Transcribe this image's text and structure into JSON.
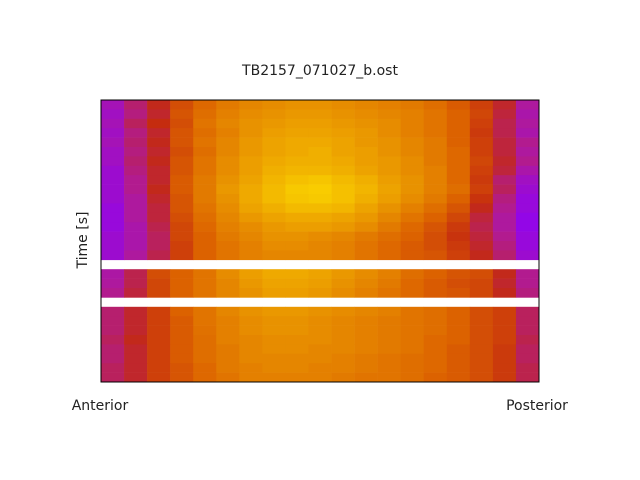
{
  "chart_data": {
    "type": "heatmap",
    "title": "TB2157_071027_b.ost",
    "ylabel": "Time [s]",
    "xlabel_left": "Anterior",
    "xlabel_right": "Posterior",
    "zlim": [
      0,
      100
    ],
    "colormap": [
      "#8a00ff",
      "#b01a9a",
      "#c42a10",
      "#dc6200",
      "#e99400",
      "#f6c400",
      "#ffe200"
    ],
    "z": [
      [
        12,
        22,
        32,
        44,
        52,
        58,
        62,
        64,
        66,
        66,
        64,
        62,
        60,
        58,
        54,
        48,
        40,
        30,
        16
      ],
      [
        10,
        20,
        30,
        46,
        54,
        60,
        64,
        66,
        68,
        68,
        66,
        64,
        62,
        60,
        56,
        50,
        42,
        28,
        14
      ],
      [
        12,
        24,
        34,
        44,
        56,
        62,
        66,
        68,
        70,
        70,
        68,
        66,
        64,
        60,
        56,
        50,
        40,
        26,
        16
      ],
      [
        10,
        20,
        30,
        46,
        54,
        60,
        66,
        70,
        72,
        72,
        70,
        68,
        64,
        60,
        56,
        50,
        38,
        26,
        14
      ],
      [
        12,
        22,
        32,
        46,
        56,
        62,
        68,
        72,
        74,
        74,
        72,
        68,
        66,
        62,
        58,
        50,
        40,
        28,
        18
      ],
      [
        10,
        20,
        30,
        44,
        54,
        62,
        68,
        72,
        74,
        76,
        72,
        70,
        66,
        62,
        58,
        52,
        40,
        28,
        16
      ],
      [
        10,
        22,
        32,
        46,
        56,
        64,
        70,
        74,
        76,
        76,
        74,
        70,
        68,
        64,
        58,
        52,
        42,
        30,
        18
      ],
      [
        8,
        20,
        30,
        46,
        56,
        64,
        70,
        76,
        78,
        78,
        76,
        72,
        68,
        64,
        60,
        52,
        40,
        28,
        14
      ],
      [
        8,
        18,
        30,
        48,
        58,
        66,
        72,
        78,
        82,
        84,
        80,
        76,
        70,
        66,
        60,
        52,
        38,
        22,
        10
      ],
      [
        8,
        18,
        32,
        48,
        58,
        68,
        74,
        80,
        86,
        88,
        82,
        78,
        72,
        66,
        60,
        54,
        40,
        24,
        8
      ],
      [
        8,
        16,
        30,
        46,
        58,
        66,
        74,
        80,
        84,
        86,
        82,
        76,
        70,
        64,
        58,
        50,
        36,
        20,
        6
      ],
      [
        6,
        16,
        28,
        46,
        56,
        64,
        72,
        76,
        80,
        80,
        78,
        72,
        66,
        60,
        54,
        46,
        32,
        18,
        6
      ],
      [
        6,
        16,
        28,
        44,
        54,
        62,
        68,
        72,
        74,
        74,
        72,
        68,
        62,
        56,
        50,
        42,
        28,
        16,
        4
      ],
      [
        6,
        14,
        26,
        42,
        52,
        60,
        64,
        68,
        70,
        70,
        68,
        64,
        58,
        52,
        46,
        38,
        26,
        16,
        4
      ],
      [
        8,
        14,
        24,
        42,
        50,
        58,
        62,
        66,
        66,
        64,
        62,
        58,
        54,
        50,
        44,
        36,
        28,
        18,
        6
      ],
      [
        8,
        14,
        24,
        40,
        50,
        56,
        60,
        64,
        64,
        62,
        60,
        56,
        52,
        48,
        44,
        38,
        30,
        20,
        6
      ],
      [
        8,
        16,
        26,
        40,
        50,
        56,
        60,
        62,
        62,
        62,
        60,
        56,
        52,
        48,
        46,
        40,
        32,
        22,
        8
      ],
      null,
      [
        15,
        26,
        44,
        50,
        56,
        64,
        70,
        74,
        74,
        72,
        68,
        64,
        60,
        54,
        50,
        46,
        44,
        32,
        18
      ],
      [
        16,
        26,
        42,
        50,
        56,
        62,
        68,
        72,
        72,
        70,
        66,
        62,
        58,
        52,
        48,
        44,
        42,
        30,
        18
      ],
      [
        18,
        28,
        42,
        50,
        56,
        62,
        66,
        70,
        70,
        68,
        64,
        60,
        56,
        52,
        48,
        46,
        42,
        32,
        20
      ],
      null,
      [
        22,
        30,
        40,
        50,
        56,
        62,
        66,
        68,
        68,
        66,
        64,
        62,
        60,
        56,
        54,
        50,
        44,
        40,
        24
      ],
      [
        22,
        30,
        40,
        48,
        56,
        60,
        64,
        66,
        66,
        64,
        62,
        60,
        58,
        56,
        54,
        50,
        44,
        40,
        24
      ],
      [
        22,
        30,
        40,
        48,
        55,
        60,
        64,
        66,
        66,
        64,
        62,
        60,
        58,
        56,
        54,
        50,
        44,
        40,
        24
      ],
      [
        24,
        32,
        40,
        48,
        54,
        60,
        62,
        64,
        64,
        64,
        62,
        60,
        58,
        56,
        52,
        50,
        44,
        40,
        26
      ],
      [
        22,
        30,
        40,
        48,
        54,
        58,
        62,
        64,
        64,
        62,
        62,
        60,
        58,
        56,
        52,
        48,
        44,
        38,
        24
      ],
      [
        22,
        30,
        40,
        48,
        54,
        58,
        62,
        62,
        62,
        62,
        60,
        58,
        56,
        54,
        52,
        48,
        44,
        38,
        24
      ],
      [
        24,
        30,
        40,
        46,
        52,
        58,
        60,
        62,
        62,
        60,
        60,
        58,
        56,
        54,
        52,
        48,
        44,
        38,
        26
      ],
      [
        24,
        30,
        40,
        46,
        52,
        56,
        60,
        60,
        60,
        60,
        58,
        56,
        56,
        54,
        50,
        48,
        44,
        38,
        26
      ]
    ]
  }
}
